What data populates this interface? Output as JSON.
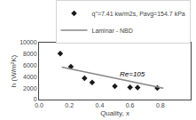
{
  "chart_data": {
    "type": "scatter",
    "xlabel": "Quality, x",
    "ylabel": "h (W/m²K)",
    "xlim": [
      0,
      1.0
    ],
    "ylim": [
      0,
      10000
    ],
    "xticks": [
      {
        "value": 0,
        "label": "0.0"
      },
      0.2,
      0.4,
      0.6,
      0.8
    ],
    "yticks": [
      0,
      2000,
      4000,
      6000,
      8000,
      10000
    ],
    "grid": false,
    "legend": "upper right",
    "series": [
      {
        "name": "q\"=7.41 kw/m2s, Pavg=154.7 kPa",
        "type": "scatter",
        "color": "#1a1a1a",
        "marker": "diamond",
        "x": [
          0.14,
          0.21,
          0.3,
          0.35,
          0.5,
          0.6,
          0.65,
          0.78
        ],
        "values": [
          8100,
          5800,
          3750,
          3000,
          2350,
          2150,
          2100,
          2020
        ]
      },
      {
        "name": "Laminar - NBD",
        "type": "line",
        "color": "#888888",
        "line_style": "solid",
        "x": [
          0.15,
          0.82
        ],
        "values": [
          5700,
          2000
        ]
      }
    ],
    "annotations": [
      {
        "text": "Re=105",
        "x": 0.52,
        "y": 3500
      }
    ]
  }
}
